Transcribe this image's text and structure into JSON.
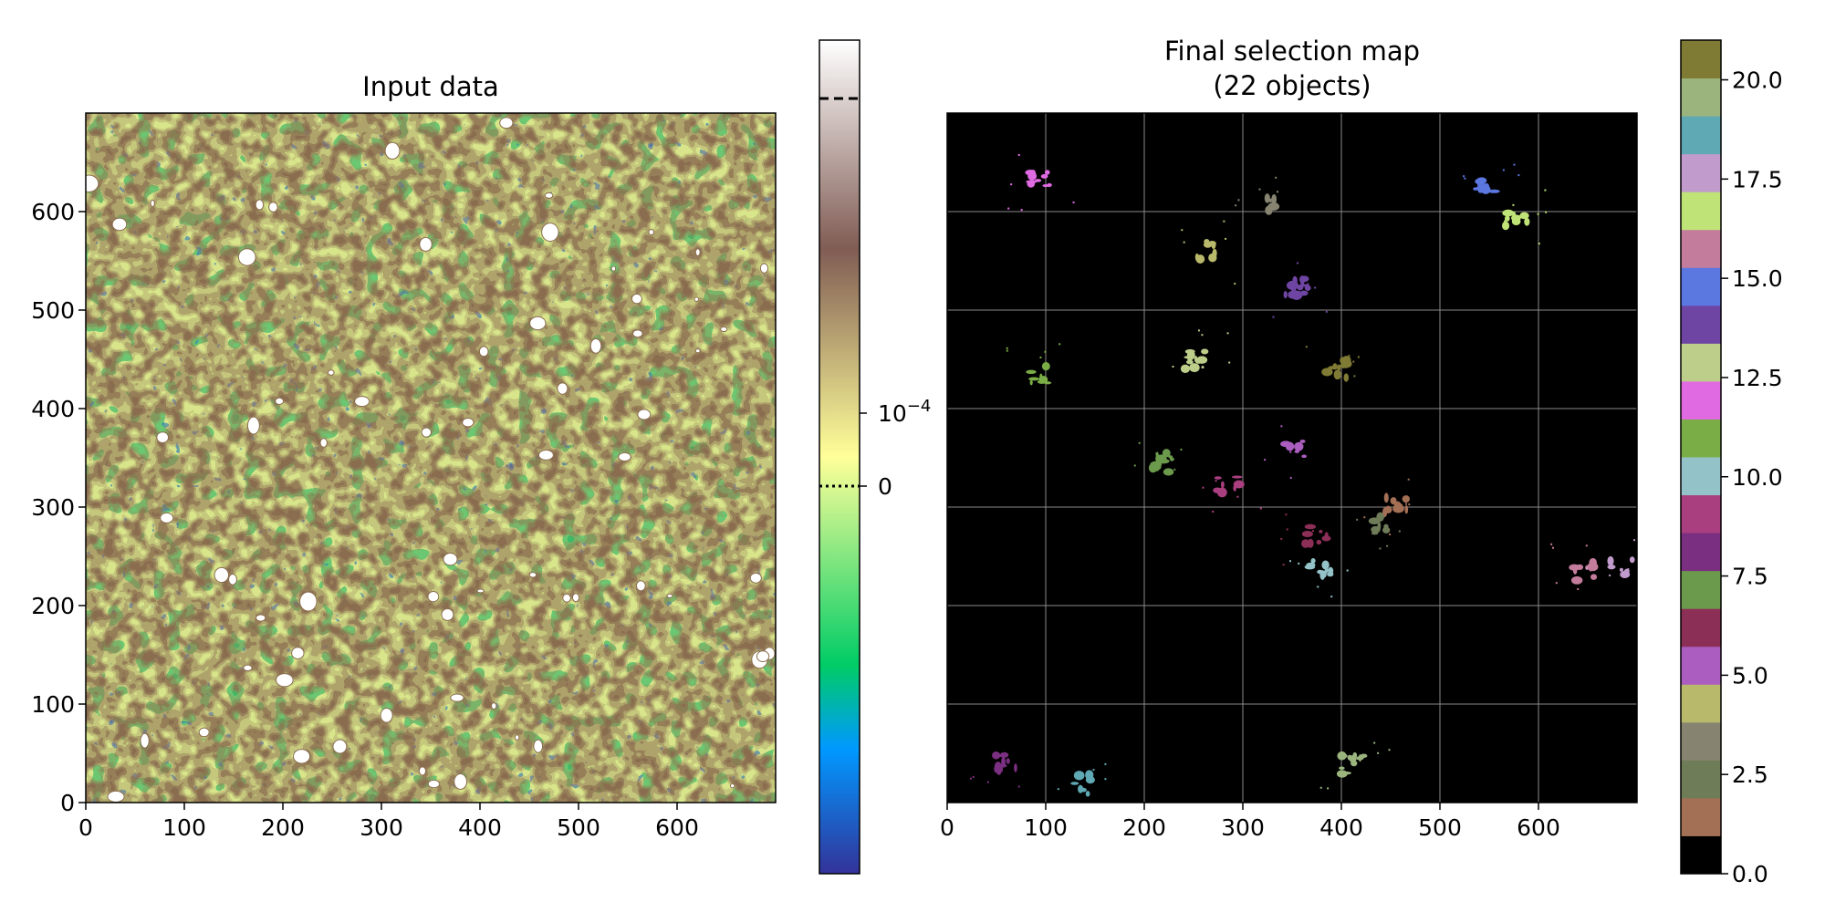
{
  "chart_data": [
    {
      "type": "heatmap",
      "title": "Input data",
      "xlabel": "",
      "ylabel": "",
      "xlim": [
        0,
        700
      ],
      "ylim": [
        0,
        700
      ],
      "x_ticks": [
        0,
        100,
        200,
        300,
        400,
        500,
        600
      ],
      "y_ticks": [
        0,
        100,
        200,
        300,
        400,
        500,
        600
      ],
      "x_tick_labels": [
        "0",
        "100",
        "200",
        "300",
        "400",
        "500",
        "600"
      ],
      "y_tick_labels": [
        "0",
        "100",
        "200",
        "300",
        "400",
        "500",
        "600"
      ],
      "grid": false,
      "colormap": "terrain",
      "colorbar": {
        "ticks": [
          {
            "label_base": "10",
            "label_exp": "−4",
            "value": 0.0001
          },
          {
            "label": "0",
            "value": 0
          }
        ],
        "contour_levels": [
          {
            "style": "dashed",
            "position": "near-top"
          },
          {
            "style": "dotted",
            "value": 0
          }
        ]
      },
      "notes_visible": "noise field with white contour-enclosed islands"
    },
    {
      "type": "heatmap",
      "title": "Final selection map",
      "subtitle": "(22 objects)",
      "xlabel": "",
      "ylabel": "",
      "xlim": [
        0,
        700
      ],
      "ylim": [
        0,
        700
      ],
      "x_ticks": [
        0,
        100,
        200,
        300,
        400,
        500,
        600
      ],
      "x_tick_labels": [
        "0",
        "100",
        "200",
        "300",
        "400",
        "500",
        "600"
      ],
      "grid": true,
      "background": "#000000",
      "colorbar": {
        "range": [
          0,
          21
        ],
        "ticks": [
          0.0,
          2.5,
          5.0,
          7.5,
          10.0,
          12.5,
          15.0,
          17.5,
          20.0
        ],
        "tick_labels": [
          "0.0",
          "2.5",
          "5.0",
          "7.5",
          "10.0",
          "12.5",
          "15.0",
          "17.5",
          "20.0"
        ],
        "colors": [
          "#000000",
          "#a36f55",
          "#6f7c58",
          "#868470",
          "#b9b96c",
          "#ab5ebf",
          "#8c2f57",
          "#6b9a4c",
          "#7b2f81",
          "#aa3f80",
          "#93c3c8",
          "#7bad47",
          "#e06ae2",
          "#bdcd8a",
          "#6f45a4",
          "#5b77e0",
          "#c47c9c",
          "#bfe377",
          "#c19bcc",
          "#5fa9b4",
          "#9bb47e",
          "#807b34"
        ]
      },
      "objects": [
        {
          "label": 12,
          "x": 95,
          "y": 630
        },
        {
          "label": 15,
          "x": 545,
          "y": 630
        },
        {
          "label": 17,
          "x": 578,
          "y": 595
        },
        {
          "label": 4,
          "x": 262,
          "y": 560
        },
        {
          "label": 14,
          "x": 355,
          "y": 525
        },
        {
          "label": 21,
          "x": 395,
          "y": 440
        },
        {
          "label": 13,
          "x": 253,
          "y": 450
        },
        {
          "label": 11,
          "x": 96,
          "y": 434
        },
        {
          "label": 5,
          "x": 355,
          "y": 360
        },
        {
          "label": 7,
          "x": 218,
          "y": 345
        },
        {
          "label": 9,
          "x": 285,
          "y": 325
        },
        {
          "label": 1,
          "x": 455,
          "y": 300
        },
        {
          "label": 2,
          "x": 437,
          "y": 280
        },
        {
          "label": 6,
          "x": 375,
          "y": 270
        },
        {
          "label": 10,
          "x": 378,
          "y": 240
        },
        {
          "label": 16,
          "x": 645,
          "y": 235
        },
        {
          "label": 18,
          "x": 685,
          "y": 240
        },
        {
          "label": 19,
          "x": 135,
          "y": 18
        },
        {
          "label": 20,
          "x": 412,
          "y": 38
        },
        {
          "label": 3,
          "x": 320,
          "y": 610
        },
        {
          "label": 8,
          "x": 60,
          "y": 40
        },
        {
          "label": 0,
          "x": 0,
          "y": 0
        }
      ]
    }
  ]
}
